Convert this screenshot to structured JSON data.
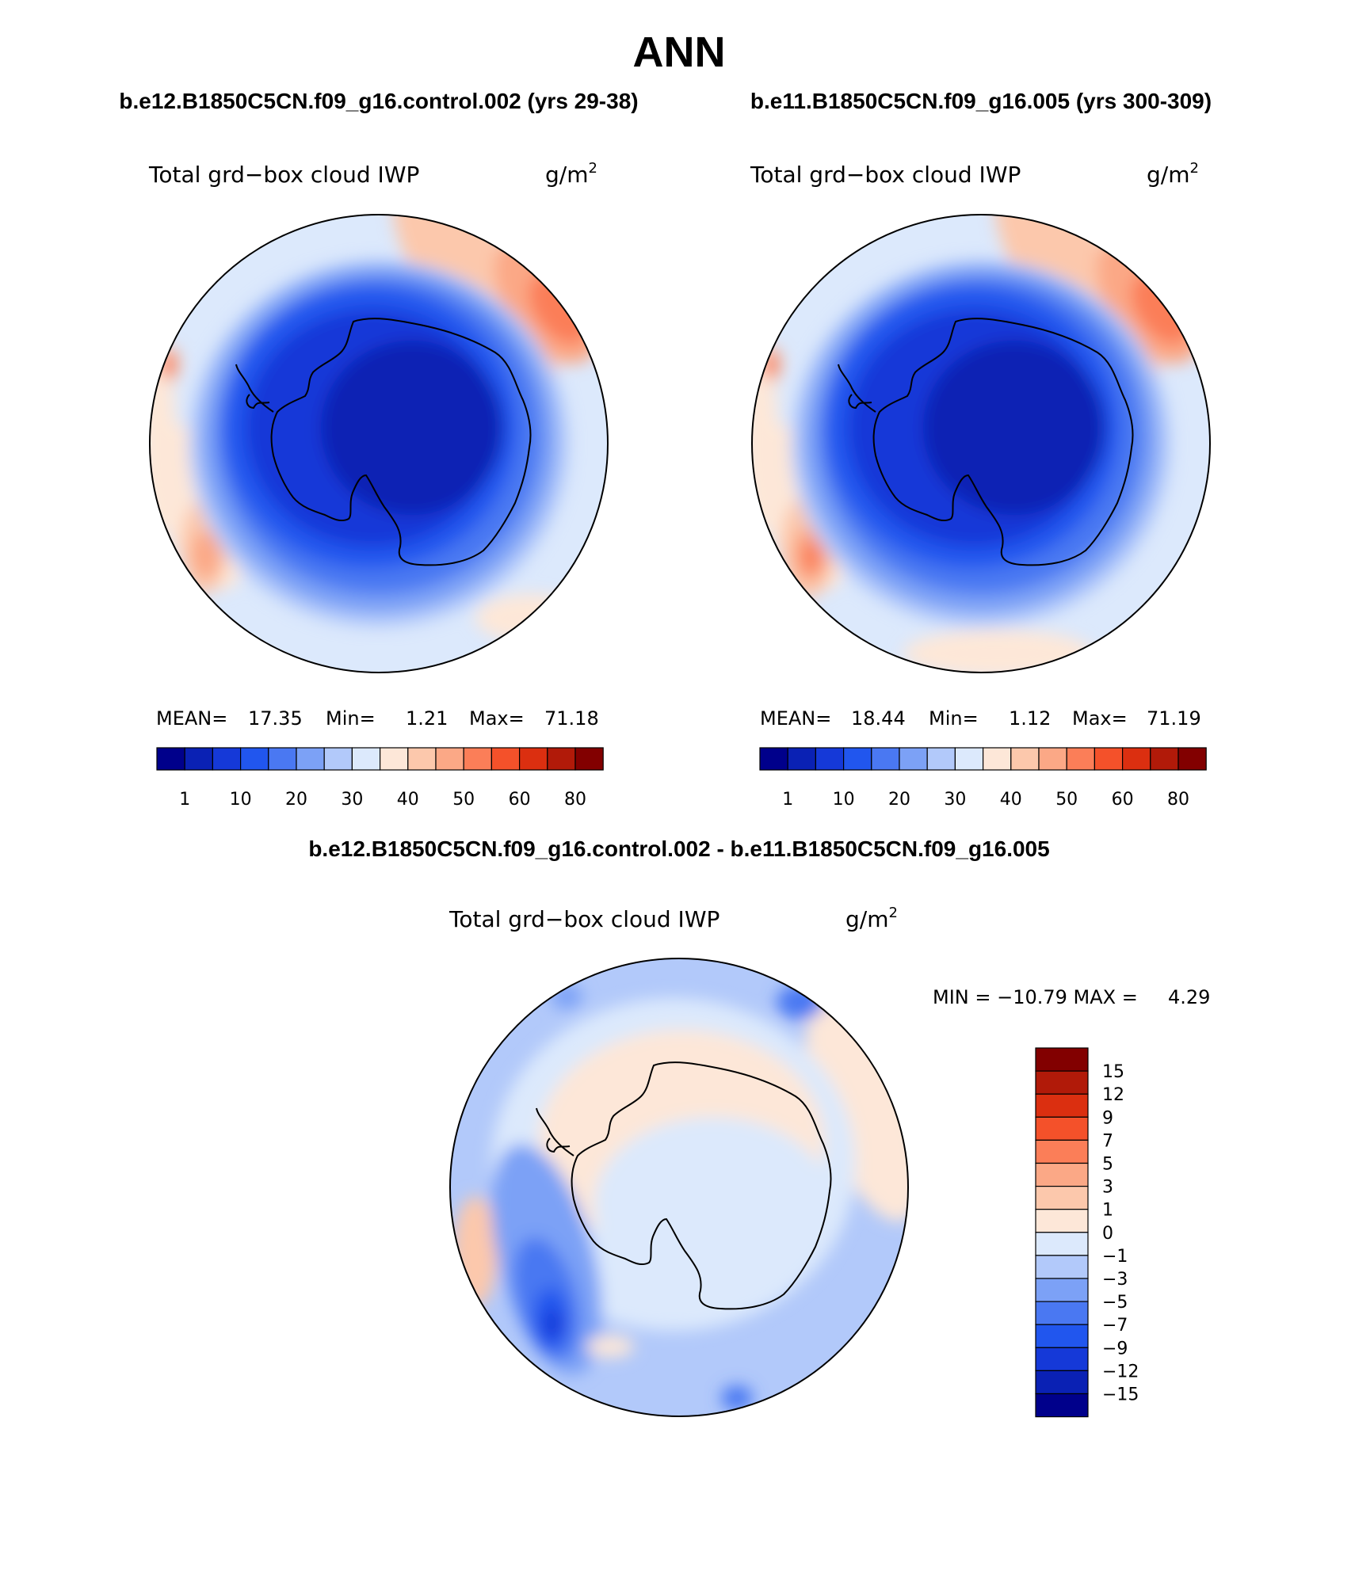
{
  "page": {
    "season": "ANN"
  },
  "panels": [
    {
      "case_title": "b.e12.B1850C5CN.f09_g16.control.002 (yrs 29-38)",
      "field": "Total grd−box cloud IWP",
      "units_base": "g/m",
      "units_exp": "2",
      "stats": {
        "mean_label": "MEAN=",
        "mean": "17.35",
        "min_label": "Min=",
        "min": "1.21",
        "max_label": "Max=",
        "max": "71.18"
      }
    },
    {
      "case_title": "b.e11.B1850C5CN.f09_g16.005 (yrs 300-309)",
      "field": "Total grd−box cloud IWP",
      "units_base": "g/m",
      "units_exp": "2",
      "stats": {
        "mean_label": "MEAN=",
        "mean": "18.44",
        "min_label": "Min=",
        "min": "1.12",
        "max_label": "Max=",
        "max": "71.19"
      }
    }
  ],
  "difference": {
    "title": "b.e12.B1850C5CN.f09_g16.control.002 - b.e11.B1850C5CN.f09_g16.005",
    "field": "Total grd−box cloud IWP",
    "units_base": "g/m",
    "units_exp": "2",
    "minmax": "MIN = −10.79 MAX =     4.29"
  },
  "chart_data": [
    {
      "type": "heatmap",
      "projection": "south polar stereographic",
      "colorbar_orientation": "horizontal",
      "colors": [
        "#00008b",
        "#0a21b4",
        "#1539d8",
        "#2156ee",
        "#4a78f2",
        "#7ca1f6",
        "#b2c9fa",
        "#dce9fc",
        "#fde7d8",
        "#fcc8ac",
        "#fba886",
        "#fb7e58",
        "#f4512a",
        "#db2f10",
        "#b11a09",
        "#820000"
      ],
      "tick_labels": [
        "1",
        "10",
        "20",
        "30",
        "40",
        "50",
        "60",
        "80"
      ],
      "field_summary": {
        "mean": 17.35,
        "min": 1.21,
        "max": 71.18
      }
    },
    {
      "type": "heatmap",
      "projection": "south polar stereographic",
      "colorbar_orientation": "horizontal",
      "colors": [
        "#00008b",
        "#0a21b4",
        "#1539d8",
        "#2156ee",
        "#4a78f2",
        "#7ca1f6",
        "#b2c9fa",
        "#dce9fc",
        "#fde7d8",
        "#fcc8ac",
        "#fba886",
        "#fb7e58",
        "#f4512a",
        "#db2f10",
        "#b11a09",
        "#820000"
      ],
      "tick_labels": [
        "1",
        "10",
        "20",
        "30",
        "40",
        "50",
        "60",
        "80"
      ],
      "field_summary": {
        "mean": 18.44,
        "min": 1.12,
        "max": 71.19
      }
    },
    {
      "type": "heatmap",
      "projection": "south polar stereographic",
      "colorbar_orientation": "vertical",
      "colors": [
        "#820000",
        "#b11a09",
        "#db2f10",
        "#f4512a",
        "#fb7e58",
        "#fba886",
        "#fcc8ac",
        "#fde7d8",
        "#dce9fc",
        "#b2c9fa",
        "#7ca1f6",
        "#4a78f2",
        "#2156ee",
        "#1539d8",
        "#0a21b4",
        "#00008b"
      ],
      "tick_labels": [
        "15",
        "12",
        "9",
        "7",
        "5",
        "3",
        "1",
        "0",
        "−1",
        "−3",
        "−5",
        "−7",
        "−9",
        "−12",
        "−15"
      ],
      "field_summary": {
        "min": -10.79,
        "max": 4.29
      }
    }
  ]
}
